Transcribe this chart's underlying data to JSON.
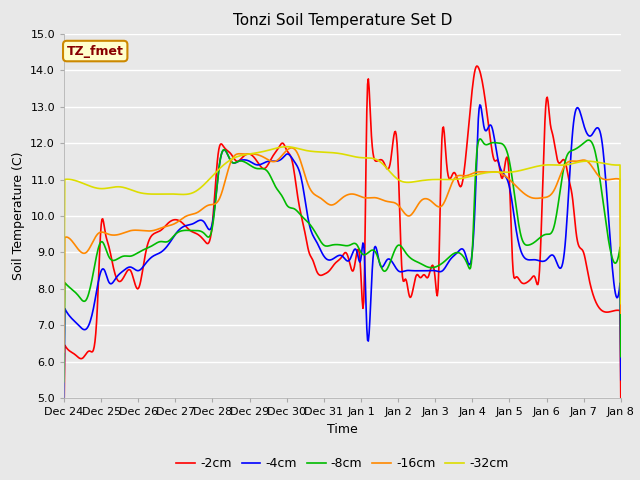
{
  "title": "Tonzi Soil Temperature Set D",
  "xlabel": "Time",
  "ylabel": "Soil Temperature (C)",
  "ylim": [
    5.0,
    15.0
  ],
  "yticks": [
    5.0,
    6.0,
    7.0,
    8.0,
    9.0,
    10.0,
    11.0,
    12.0,
    13.0,
    14.0,
    15.0
  ],
  "xtick_labels": [
    "Dec 24",
    "Dec 25",
    "Dec 26",
    "Dec 27",
    "Dec 28",
    "Dec 29",
    "Dec 30",
    "Dec 31",
    "Jan 1",
    "Jan 2",
    "Jan 3",
    "Jan 4",
    "Jan 5",
    "Jan 6",
    "Jan 7",
    "Jan 8"
  ],
  "legend_label": "TZ_fmet",
  "series_labels": [
    "-2cm",
    "-4cm",
    "-8cm",
    "-16cm",
    "-32cm"
  ],
  "series_colors": [
    "#ff0000",
    "#0000ff",
    "#00bb00",
    "#ff8800",
    "#dddd00"
  ],
  "fig_bg_color": "#e8e8e8",
  "plot_bg_color": "#e8e8e8",
  "grid_color": "#ffffff",
  "title_fontsize": 11,
  "axis_fontsize": 9,
  "tick_fontsize": 8,
  "legend_box_facecolor": "#ffffcc",
  "legend_box_edgecolor": "#cc8800",
  "legend_text_color": "#880000",
  "n_days": 15,
  "cx_red": [
    0,
    0.15,
    0.3,
    0.5,
    0.7,
    0.9,
    1.0,
    1.1,
    1.2,
    1.35,
    1.5,
    1.65,
    1.8,
    2.0,
    2.2,
    2.4,
    2.6,
    2.8,
    3.0,
    3.2,
    3.4,
    3.6,
    3.8,
    4.0,
    4.15,
    4.3,
    4.5,
    4.65,
    4.8,
    5.0,
    5.2,
    5.4,
    5.6,
    5.8,
    5.9,
    6.0,
    6.15,
    6.3,
    6.5,
    6.6,
    6.7,
    6.8,
    7.0,
    7.15,
    7.3,
    7.5,
    7.6,
    7.7,
    7.8,
    8.0,
    8.1,
    8.15,
    8.25,
    8.4,
    8.6,
    8.8,
    9.0,
    9.1,
    9.2,
    9.3,
    9.5,
    9.6,
    9.7,
    9.8,
    10.0,
    10.1,
    10.15,
    10.3,
    10.5,
    10.6,
    10.7,
    10.8,
    11.0,
    11.1,
    11.15,
    11.3,
    11.5,
    11.6,
    11.7,
    11.8,
    12.0,
    12.1,
    12.15,
    12.3,
    12.5,
    12.6,
    12.7,
    12.8,
    13.0,
    13.1,
    13.15,
    13.3,
    13.5,
    13.6,
    13.7,
    13.8,
    14.0,
    14.1,
    14.5,
    15.0
  ],
  "cy_red": [
    6.5,
    6.3,
    6.2,
    6.1,
    6.3,
    7.5,
    9.8,
    9.6,
    9.2,
    8.5,
    8.2,
    8.4,
    8.5,
    8.0,
    9.0,
    9.5,
    9.6,
    9.8,
    9.9,
    9.8,
    9.6,
    9.5,
    9.3,
    9.8,
    11.7,
    11.9,
    11.7,
    11.5,
    11.6,
    11.7,
    11.5,
    11.3,
    11.6,
    11.9,
    12.0,
    11.8,
    11.5,
    10.5,
    9.5,
    9.0,
    8.8,
    8.5,
    8.4,
    8.5,
    8.7,
    8.9,
    9.0,
    8.7,
    8.5,
    8.4,
    8.5,
    12.7,
    12.8,
    11.5,
    11.5,
    11.5,
    11.5,
    8.5,
    8.3,
    7.8,
    8.4,
    8.3,
    8.4,
    8.3,
    8.3,
    8.5,
    11.2,
    11.5,
    11.2,
    11.0,
    10.8,
    11.4,
    13.5,
    14.1,
    14.1,
    13.5,
    12.0,
    11.5,
    11.5,
    11.0,
    11.0,
    8.4,
    8.3,
    8.2,
    8.2,
    8.3,
    8.3,
    8.3,
    13.3,
    12.5,
    12.3,
    11.5,
    11.5,
    11.0,
    10.5,
    9.5,
    9.0,
    8.5,
    7.4,
    7.4
  ],
  "cx_blue": [
    0,
    0.2,
    0.4,
    0.6,
    0.8,
    1.0,
    1.1,
    1.2,
    1.4,
    1.6,
    1.8,
    2.0,
    2.2,
    2.4,
    2.6,
    2.8,
    3.0,
    3.2,
    3.5,
    3.8,
    4.0,
    4.2,
    4.5,
    4.7,
    5.0,
    5.2,
    5.5,
    5.7,
    5.9,
    6.0,
    6.2,
    6.4,
    6.6,
    6.8,
    7.0,
    7.2,
    7.5,
    7.7,
    7.9,
    8.0,
    8.1,
    8.15,
    8.3,
    8.5,
    8.7,
    9.0,
    9.2,
    9.4,
    9.6,
    9.8,
    10.0,
    10.2,
    10.4,
    10.6,
    10.8,
    11.0,
    11.1,
    11.15,
    11.3,
    11.5,
    11.7,
    12.0,
    12.2,
    12.5,
    12.7,
    13.0,
    13.2,
    13.5,
    13.7,
    14.0,
    14.2,
    14.5,
    14.7,
    15.0
  ],
  "cy_blue": [
    7.5,
    7.2,
    7.0,
    6.9,
    7.5,
    8.5,
    8.5,
    8.2,
    8.3,
    8.5,
    8.6,
    8.5,
    8.7,
    8.9,
    9.0,
    9.2,
    9.5,
    9.7,
    9.8,
    9.8,
    9.8,
    11.5,
    11.5,
    11.5,
    11.5,
    11.4,
    11.5,
    11.5,
    11.6,
    11.7,
    11.5,
    11.0,
    9.8,
    9.3,
    8.9,
    8.8,
    8.9,
    8.8,
    9.0,
    8.8,
    8.9,
    7.0,
    8.5,
    8.7,
    8.8,
    8.5,
    8.5,
    8.5,
    8.5,
    8.5,
    8.5,
    8.5,
    8.8,
    9.0,
    9.0,
    9.0,
    11.0,
    12.5,
    12.5,
    12.5,
    11.5,
    10.8,
    9.5,
    8.8,
    8.8,
    8.8,
    8.9,
    9.2,
    12.3,
    12.5,
    12.2,
    12.0,
    9.5,
    8.4
  ],
  "cx_green": [
    0,
    0.2,
    0.4,
    0.6,
    0.8,
    1.0,
    1.2,
    1.4,
    1.6,
    1.8,
    2.0,
    2.2,
    2.4,
    2.6,
    2.8,
    3.0,
    3.2,
    3.5,
    3.8,
    4.0,
    4.2,
    4.5,
    4.7,
    5.0,
    5.2,
    5.5,
    5.7,
    5.9,
    6.0,
    6.2,
    6.4,
    6.6,
    6.8,
    7.0,
    7.2,
    7.5,
    7.7,
    7.9,
    8.0,
    8.2,
    8.4,
    8.6,
    9.0,
    9.2,
    9.4,
    9.6,
    9.8,
    10.0,
    10.3,
    10.6,
    10.9,
    11.0,
    11.1,
    11.15,
    11.3,
    11.5,
    11.7,
    12.0,
    12.3,
    12.5,
    12.7,
    13.0,
    13.2,
    13.5,
    13.7,
    14.0,
    14.3,
    14.6,
    15.0
  ],
  "cy_green": [
    8.2,
    8.0,
    7.8,
    7.7,
    8.5,
    9.3,
    8.9,
    8.8,
    8.9,
    8.9,
    9.0,
    9.1,
    9.2,
    9.3,
    9.3,
    9.5,
    9.6,
    9.6,
    9.5,
    9.7,
    11.5,
    11.5,
    11.5,
    11.4,
    11.3,
    11.2,
    10.8,
    10.5,
    10.3,
    10.2,
    10.0,
    9.8,
    9.5,
    9.2,
    9.2,
    9.2,
    9.2,
    9.2,
    9.0,
    9.0,
    9.0,
    8.5,
    9.2,
    9.0,
    8.8,
    8.7,
    8.6,
    8.6,
    8.8,
    9.0,
    8.6,
    9.0,
    11.5,
    12.0,
    12.0,
    12.0,
    12.0,
    11.5,
    9.5,
    9.2,
    9.3,
    9.5,
    9.7,
    11.5,
    11.8,
    12.0,
    11.8,
    9.8,
    9.3
  ],
  "cx_orange": [
    0,
    0.3,
    0.6,
    0.9,
    1.2,
    1.5,
    1.8,
    2.1,
    2.4,
    2.7,
    3.0,
    3.3,
    3.6,
    3.9,
    4.2,
    4.5,
    4.8,
    5.1,
    5.4,
    5.7,
    6.0,
    6.3,
    6.6,
    6.9,
    7.2,
    7.5,
    7.8,
    8.1,
    8.4,
    8.7,
    9.0,
    9.3,
    9.6,
    9.9,
    10.2,
    10.5,
    10.8,
    11.1,
    11.4,
    11.7,
    12.0,
    12.3,
    12.6,
    12.9,
    13.2,
    13.5,
    13.8,
    14.1,
    14.4,
    14.7,
    15.0
  ],
  "cy_orange": [
    9.4,
    9.2,
    9.0,
    9.5,
    9.5,
    9.5,
    9.6,
    9.6,
    9.6,
    9.7,
    9.8,
    10.0,
    10.1,
    10.3,
    10.5,
    11.5,
    11.7,
    11.7,
    11.6,
    11.5,
    11.8,
    11.7,
    10.8,
    10.5,
    10.3,
    10.5,
    10.6,
    10.5,
    10.5,
    10.4,
    10.3,
    10.0,
    10.4,
    10.4,
    10.3,
    11.0,
    11.1,
    11.2,
    11.2,
    11.2,
    11.0,
    10.7,
    10.5,
    10.5,
    10.7,
    11.4,
    11.5,
    11.5,
    11.1,
    11.0,
    11.0
  ],
  "cx_yellow": [
    0,
    0.5,
    1.0,
    1.5,
    2.0,
    2.5,
    3.0,
    3.5,
    4.0,
    4.3,
    4.6,
    5.0,
    5.5,
    6.0,
    6.5,
    7.0,
    7.5,
    8.0,
    8.5,
    9.0,
    9.5,
    10.0,
    10.5,
    11.0,
    11.5,
    12.0,
    12.5,
    13.0,
    13.5,
    14.0,
    14.5,
    15.0
  ],
  "cy_yellow": [
    11.0,
    10.9,
    10.75,
    10.8,
    10.65,
    10.6,
    10.6,
    10.65,
    11.1,
    11.4,
    11.6,
    11.7,
    11.8,
    11.9,
    11.8,
    11.75,
    11.7,
    11.6,
    11.5,
    11.0,
    10.95,
    11.0,
    11.0,
    11.1,
    11.2,
    11.2,
    11.3,
    11.4,
    11.4,
    11.5,
    11.45,
    11.4
  ]
}
